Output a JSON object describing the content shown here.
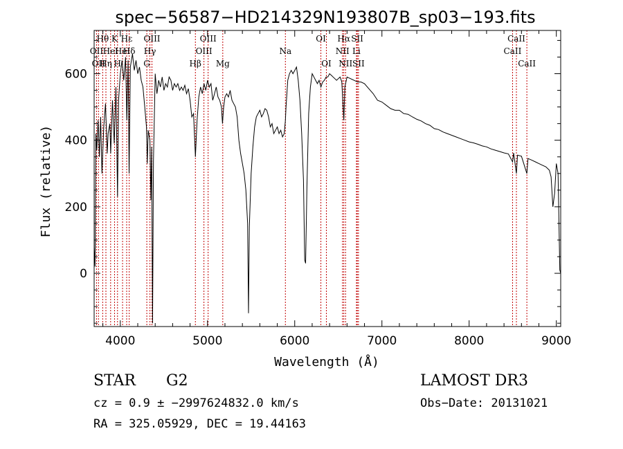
{
  "chart_data": {
    "type": "line",
    "title": "spec−56587−HD214329N193807B_sp03−193.fits",
    "xlabel": "Wavelength (Å)",
    "ylabel": "Flux (relative)",
    "xlim": [
      3700,
      9050
    ],
    "ylim": [
      -160,
      730
    ],
    "x_ticks": [
      4000,
      5000,
      6000,
      7000,
      8000,
      9000
    ],
    "y_ticks": [
      0,
      200,
      400,
      600
    ],
    "colors": {
      "spectrum": "#000000",
      "lines": "#c00000",
      "axes": "#000000"
    },
    "series": [
      {
        "name": "spectrum",
        "points": [
          [
            3700,
            80
          ],
          [
            3710,
            20
          ],
          [
            3720,
            420
          ],
          [
            3730,
            370
          ],
          [
            3745,
            460
          ],
          [
            3760,
            350
          ],
          [
            3775,
            470
          ],
          [
            3790,
            300
          ],
          [
            3810,
            440
          ],
          [
            3830,
            510
          ],
          [
            3850,
            360
          ],
          [
            3860,
            420
          ],
          [
            3880,
            450
          ],
          [
            3890,
            360
          ],
          [
            3910,
            520
          ],
          [
            3930,
            390
          ],
          [
            3950,
            560
          ],
          [
            3968,
            230
          ],
          [
            3980,
            520
          ],
          [
            4000,
            600
          ],
          [
            4020,
            640
          ],
          [
            4040,
            580
          ],
          [
            4060,
            650
          ],
          [
            4075,
            460
          ],
          [
            4090,
            640
          ],
          [
            4101,
            300
          ],
          [
            4115,
            620
          ],
          [
            4140,
            660
          ],
          [
            4160,
            610
          ],
          [
            4180,
            640
          ],
          [
            4200,
            600
          ],
          [
            4220,
            620
          ],
          [
            4240,
            580
          ],
          [
            4260,
            560
          ],
          [
            4280,
            500
          ],
          [
            4300,
            440
          ],
          [
            4310,
            330
          ],
          [
            4320,
            430
          ],
          [
            4340,
            400
          ],
          [
            4350,
            220
          ],
          [
            4360,
            380
          ],
          [
            4370,
            -150
          ],
          [
            4380,
            340
          ],
          [
            4400,
            600
          ],
          [
            4420,
            540
          ],
          [
            4440,
            580
          ],
          [
            4460,
            560
          ],
          [
            4480,
            590
          ],
          [
            4500,
            550
          ],
          [
            4520,
            570
          ],
          [
            4540,
            560
          ],
          [
            4560,
            590
          ],
          [
            4580,
            580
          ],
          [
            4600,
            550
          ],
          [
            4620,
            570
          ],
          [
            4640,
            560
          ],
          [
            4660,
            570
          ],
          [
            4680,
            550
          ],
          [
            4700,
            560
          ],
          [
            4720,
            550
          ],
          [
            4740,
            565
          ],
          [
            4760,
            540
          ],
          [
            4780,
            555
          ],
          [
            4800,
            520
          ],
          [
            4820,
            470
          ],
          [
            4840,
            480
          ],
          [
            4861,
            350
          ],
          [
            4880,
            460
          ],
          [
            4900,
            530
          ],
          [
            4920,
            560
          ],
          [
            4940,
            540
          ],
          [
            4960,
            570
          ],
          [
            4980,
            550
          ],
          [
            5000,
            580
          ],
          [
            5020,
            560
          ],
          [
            5040,
            570
          ],
          [
            5060,
            520
          ],
          [
            5080,
            540
          ],
          [
            5100,
            560
          ],
          [
            5120,
            530
          ],
          [
            5140,
            520
          ],
          [
            5160,
            500
          ],
          [
            5172,
            450
          ],
          [
            5185,
            500
          ],
          [
            5200,
            530
          ],
          [
            5220,
            540
          ],
          [
            5240,
            530
          ],
          [
            5260,
            550
          ],
          [
            5280,
            520
          ],
          [
            5300,
            510
          ],
          [
            5320,
            500
          ],
          [
            5340,
            470
          ],
          [
            5360,
            400
          ],
          [
            5380,
            360
          ],
          [
            5400,
            330
          ],
          [
            5420,
            300
          ],
          [
            5440,
            250
          ],
          [
            5460,
            150
          ],
          [
            5470,
            -120
          ],
          [
            5480,
            140
          ],
          [
            5500,
            300
          ],
          [
            5520,
            380
          ],
          [
            5540,
            440
          ],
          [
            5560,
            470
          ],
          [
            5580,
            480
          ],
          [
            5600,
            490
          ],
          [
            5620,
            470
          ],
          [
            5640,
            480
          ],
          [
            5660,
            495
          ],
          [
            5680,
            490
          ],
          [
            5700,
            470
          ],
          [
            5720,
            440
          ],
          [
            5740,
            450
          ],
          [
            5760,
            420
          ],
          [
            5780,
            430
          ],
          [
            5800,
            440
          ],
          [
            5820,
            420
          ],
          [
            5840,
            430
          ],
          [
            5860,
            410
          ],
          [
            5880,
            420
          ],
          [
            5893,
            460
          ],
          [
            5900,
            500
          ],
          [
            5920,
            580
          ],
          [
            5940,
            600
          ],
          [
            5960,
            610
          ],
          [
            5980,
            600
          ],
          [
            6000,
            610
          ],
          [
            6020,
            620
          ],
          [
            6040,
            580
          ],
          [
            6060,
            520
          ],
          [
            6080,
            420
          ],
          [
            6100,
            280
          ],
          [
            6115,
            40
          ],
          [
            6125,
            30
          ],
          [
            6140,
            260
          ],
          [
            6160,
            480
          ],
          [
            6180,
            560
          ],
          [
            6200,
            600
          ],
          [
            6220,
            590
          ],
          [
            6240,
            580
          ],
          [
            6260,
            570
          ],
          [
            6280,
            580
          ],
          [
            6300,
            560
          ],
          [
            6320,
            575
          ],
          [
            6340,
            580
          ],
          [
            6360,
            590
          ],
          [
            6380,
            590
          ],
          [
            6400,
            600
          ],
          [
            6420,
            595
          ],
          [
            6440,
            590
          ],
          [
            6460,
            585
          ],
          [
            6480,
            580
          ],
          [
            6500,
            585
          ],
          [
            6520,
            590
          ],
          [
            6540,
            575
          ],
          [
            6563,
            460
          ],
          [
            6575,
            560
          ],
          [
            6600,
            590
          ],
          [
            6640,
            585
          ],
          [
            6680,
            580
          ],
          [
            6720,
            575
          ],
          [
            6760,
            575
          ],
          [
            6800,
            570
          ],
          [
            6850,
            555
          ],
          [
            6900,
            540
          ],
          [
            6950,
            520
          ],
          [
            7000,
            515
          ],
          [
            7050,
            505
          ],
          [
            7100,
            495
          ],
          [
            7150,
            490
          ],
          [
            7200,
            490
          ],
          [
            7250,
            480
          ],
          [
            7300,
            478
          ],
          [
            7350,
            470
          ],
          [
            7400,
            463
          ],
          [
            7450,
            458
          ],
          [
            7500,
            450
          ],
          [
            7550,
            445
          ],
          [
            7600,
            435
          ],
          [
            7650,
            432
          ],
          [
            7700,
            425
          ],
          [
            7750,
            420
          ],
          [
            7800,
            415
          ],
          [
            7850,
            410
          ],
          [
            7900,
            405
          ],
          [
            7950,
            400
          ],
          [
            8000,
            395
          ],
          [
            8050,
            392
          ],
          [
            8100,
            388
          ],
          [
            8150,
            383
          ],
          [
            8200,
            380
          ],
          [
            8250,
            374
          ],
          [
            8300,
            370
          ],
          [
            8350,
            366
          ],
          [
            8400,
            362
          ],
          [
            8450,
            359
          ],
          [
            8498,
            335
          ],
          [
            8510,
            362
          ],
          [
            8542,
            300
          ],
          [
            8555,
            355
          ],
          [
            8600,
            352
          ],
          [
            8662,
            300
          ],
          [
            8675,
            345
          ],
          [
            8720,
            340
          ],
          [
            8760,
            335
          ],
          [
            8800,
            330
          ],
          [
            8840,
            325
          ],
          [
            8880,
            320
          ],
          [
            8920,
            310
          ],
          [
            8940,
            290
          ],
          [
            8960,
            200
          ],
          [
            8980,
            240
          ],
          [
            9000,
            330
          ],
          [
            9020,
            300
          ],
          [
            9040,
            10
          ],
          [
            9050,
            0
          ]
        ]
      }
    ],
    "lines": [
      {
        "wl": 3727,
        "label": "OII",
        "row": 1
      },
      {
        "wl": 3750,
        "label": "OII",
        "row": 2
      },
      {
        "wl": 3798,
        "label": "Hθ",
        "row": 0
      },
      {
        "wl": 3835,
        "label": "Hη",
        "row": 2
      },
      {
        "wl": 3889,
        "label": "HeI",
        "row": 1
      },
      {
        "wl": 3934,
        "label": "K",
        "row": 0
      },
      {
        "wl": 3968,
        "label": "H",
        "row": 2
      },
      {
        "wl": 4026,
        "label": "HeI",
        "row": 1
      },
      {
        "wl": 4073,
        "label": "Hε",
        "row": 0
      },
      {
        "wl": 4102,
        "label": "Hδ",
        "row": 1
      },
      {
        "wl": 4304,
        "label": "G",
        "row": 2
      },
      {
        "wl": 4340,
        "label": "Hγ",
        "row": 1
      },
      {
        "wl": 4363,
        "label": "OIII",
        "row": 0
      },
      {
        "wl": 4861,
        "label": "Hβ",
        "row": 2
      },
      {
        "wl": 4959,
        "label": "OIII",
        "row": 1
      },
      {
        "wl": 5007,
        "label": "OIII",
        "row": 0
      },
      {
        "wl": 5175,
        "label": "Mg",
        "row": 2
      },
      {
        "wl": 5893,
        "label": "Na",
        "row": 1
      },
      {
        "wl": 6300,
        "label": "OI",
        "row": 0
      },
      {
        "wl": 6363,
        "label": "OI",
        "row": 2
      },
      {
        "wl": 6548,
        "label": "NII",
        "row": 1
      },
      {
        "wl": 6563,
        "label": "Hα",
        "row": 0
      },
      {
        "wl": 6583,
        "label": "NII",
        "row": 2
      },
      {
        "wl": 6708,
        "label": "Li",
        "row": 1
      },
      {
        "wl": 6717,
        "label": "SII",
        "row": 0
      },
      {
        "wl": 6731,
        "label": "SII",
        "row": 2
      },
      {
        "wl": 8498,
        "label": "CaII",
        "row": 1
      },
      {
        "wl": 8542,
        "label": "CaII",
        "row": 0
      },
      {
        "wl": 8662,
        "label": "CaII",
        "row": 2
      }
    ]
  },
  "footer": {
    "class_label": "STAR",
    "subclass": "G2",
    "survey": "LAMOST DR3",
    "redshift": "cz = 0.9 ± −2997624832.0 km/s",
    "obs_date": "Obs−Date: 20131021",
    "coords": "RA = 325.05929, DEC =  19.44163"
  }
}
